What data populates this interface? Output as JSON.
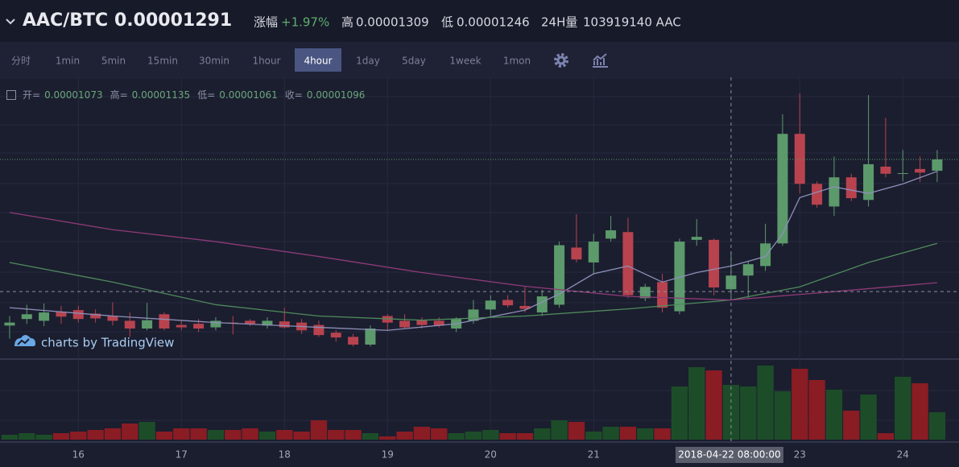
{
  "header": {
    "symbol": "AAC/BTC",
    "price": "0.00001291",
    "change_label": "涨幅",
    "change": "+1.97%",
    "high_label": "高",
    "high": "0.00001309",
    "low_label": "低",
    "low": "0.00001246",
    "volume_label": "24H量",
    "volume": "103919140 AAC"
  },
  "toolbar": {
    "intervals": [
      "分时",
      "1min",
      "5min",
      "15min",
      "30min",
      "1hour",
      "4hour",
      "1day",
      "5day",
      "1week",
      "1mon"
    ],
    "active": 6
  },
  "ohlc_legend": {
    "open_label": "开=",
    "open": "0.00001073",
    "high_label": "高=",
    "high": "0.00001135",
    "low_label": "低=",
    "low": "0.00001061",
    "close_label": "收=",
    "close": "0.00001096"
  },
  "watermark": "charts by TradingView",
  "chart_data": {
    "type": "candlestick",
    "xlim": [
      -0.56,
      55.27
    ],
    "ylim": [
      9.57e-06,
      1.429e-05
    ],
    "vlim": [
      0,
      36300000
    ],
    "xticks": [
      {
        "value": 4,
        "label": "16"
      },
      {
        "value": 10,
        "label": "17"
      },
      {
        "value": 16,
        "label": "18"
      },
      {
        "value": 22,
        "label": "19"
      },
      {
        "value": 28,
        "label": "20"
      },
      {
        "value": 34,
        "label": "21"
      },
      {
        "value": 46,
        "label": "23"
      },
      {
        "value": 52,
        "label": "24"
      }
    ],
    "up_color": "#5c9a6c",
    "down_color": "#b8434f",
    "vol_up_color": "#1d4d28",
    "vol_down_color": "#8a1c24",
    "open": [
      1.012e-05,
      1.023e-05,
      1.02e-05,
      1.035e-05,
      1.038e-05,
      1.032e-05,
      1.028e-05,
      1.02e-05,
      1.007e-05,
      1.031e-05,
      1.013e-05,
      1.015e-05,
      1.009e-05,
      1.017e-05,
      1.02e-05,
      1.012e-05,
      1.019e-05,
      1.017e-05,
      1.013e-05,
      1e-05,
      9.93e-06,
      9.8e-06,
      1.028e-05,
      1.02e-05,
      1.021e-05,
      1.02e-05,
      1.007e-05,
      1.02e-05,
      1.039e-05,
      1.055e-05,
      1.045e-05,
      1.034e-05,
      1.047e-05,
      1.143e-05,
      1.118e-05,
      1.158e-05,
      1.169e-05,
      1.058e-05,
      1.085e-05,
      1.036e-05,
      1.156e-05,
      1.156e-05,
      1.073e-05,
      1.096e-05,
      1.112e-05,
      1.15e-05,
      1.334e-05,
      1.25e-05,
      1.212e-05,
      1.261e-05,
      1.223e-05,
      1.279e-05,
      1.267e-05,
      1.275e-05,
      1.272e-05
    ],
    "high": [
      1.028e-05,
      1.047e-05,
      1.049e-05,
      1.045e-05,
      1.045e-05,
      1.039e-05,
      1.051e-05,
      1.034e-05,
      1.05e-05,
      1.034e-05,
      1.02e-05,
      1.023e-05,
      1.026e-05,
      1.028e-05,
      1.023e-05,
      1.026e-05,
      1.042e-05,
      1.023e-05,
      1.02e-05,
      1.004e-05,
      9.98e-06,
      1.012e-05,
      1.031e-05,
      1.031e-05,
      1.026e-05,
      1.026e-05,
      1.026e-05,
      1.055e-05,
      1.063e-05,
      1.063e-05,
      1.077e-05,
      1.072e-05,
      1.153e-05,
      1.199e-05,
      1.166e-05,
      1.196e-05,
      1.193e-05,
      1.082e-05,
      1.099e-05,
      1.158e-05,
      1.191e-05,
      1.158e-05,
      1.135e-05,
      1.12e-05,
      1.183e-05,
      1.367e-05,
      1.402e-05,
      1.254e-05,
      1.296e-05,
      1.267e-05,
      1.399e-05,
      1.361e-05,
      1.307e-05,
      1.296e-05,
      1.307e-05
    ],
    "low": [
      9.9e-06,
      1.015e-05,
      1.011e-05,
      1.015e-05,
      1.017e-05,
      1.017e-05,
      1.012e-05,
      9.93e-06,
      1.004e-05,
      1.004e-05,
      1.004e-05,
      1.001e-05,
      1.004e-05,
      9.97e-06,
      1.011e-05,
      1.007e-05,
      1.007e-05,
      9.98e-06,
      9.93e-06,
      9.85e-06,
      9.77e-06,
      9.77e-06,
      1.004e-05,
      1.007e-05,
      1.007e-05,
      1.009e-05,
      1.001e-05,
      1.015e-05,
      1.028e-05,
      1.042e-05,
      1.034e-05,
      1.028e-05,
      1.042e-05,
      1.118e-05,
      1.099e-05,
      1.153e-05,
      1.058e-05,
      1.053e-05,
      1.034e-05,
      1.031e-05,
      1.146e-05,
      1.063e-05,
      1.061e-05,
      1.058e-05,
      1.104e-05,
      1.146e-05,
      1.234e-05,
      1.21e-05,
      1.196e-05,
      1.221e-05,
      1.212e-05,
      1.261e-05,
      1.254e-05,
      1.253e-05,
      1.253e-05
    ],
    "close": [
      1.017e-05,
      1.031e-05,
      1.034e-05,
      1.027e-05,
      1.023e-05,
      1.024e-05,
      1.02e-05,
      1.007e-05,
      1.021e-05,
      1.007e-05,
      1.009e-05,
      1.007e-05,
      1.02e-05,
      1.016e-05,
      1.015e-05,
      1.02e-05,
      1.009e-05,
      1.004e-05,
      9.96e-06,
      9.92e-06,
      9.8e-06,
      1.007e-05,
      1.017e-05,
      1.009e-05,
      1.013e-05,
      1.012e-05,
      1.023e-05,
      1.039e-05,
      1.054e-05,
      1.046e-05,
      1.04e-05,
      1.061e-05,
      1.147e-05,
      1.123e-05,
      1.153e-05,
      1.172e-05,
      1.063e-05,
      1.077e-05,
      1.042e-05,
      1.153e-05,
      1.161e-05,
      1.076e-05,
      1.096e-05,
      1.115e-05,
      1.15e-05,
      1.334e-05,
      1.25e-05,
      1.215e-05,
      1.261e-05,
      1.226e-05,
      1.283e-05,
      1.267e-05,
      1.268e-05,
      1.269e-05,
      1.291e-05
    ],
    "volume": [
      2178000,
      2904000,
      2178000,
      2904000,
      3630000,
      4356000,
      5082000,
      7260000,
      7986000,
      3630000,
      5082000,
      5082000,
      4356000,
      4356000,
      5082000,
      3630000,
      4356000,
      3630000,
      8712000,
      4356000,
      4356000,
      2904000,
      1452000,
      3630000,
      5808000,
      5082000,
      2904000,
      3630000,
      4356000,
      2904000,
      2904000,
      5082000,
      8712000,
      7986000,
      3630000,
      5808000,
      5808000,
      5082000,
      5082000,
      23958000,
      32670000,
      31218000,
      24684000,
      23958000,
      33396000,
      21780000,
      31944000,
      26862000,
      22506000,
      13068000,
      20328000,
      2904000,
      28314000,
      25410000,
      12342000
    ],
    "series": [
      {
        "color": "#8e8fb8",
        "x": [
          0,
          6,
          12,
          18,
          22,
          26,
          30,
          32,
          34,
          36,
          38,
          40,
          42,
          44,
          45,
          46,
          48,
          50,
          52,
          54
        ],
        "values": [
          1.042e-05,
          1.028e-05,
          1.017e-05,
          1.009e-05,
          1.004e-05,
          1.015e-05,
          1.038e-05,
          1.065e-05,
          1.099e-05,
          1.112e-05,
          1.085e-05,
          1.101e-05,
          1.112e-05,
          1.128e-05,
          1.166e-05,
          1.227e-05,
          1.245e-05,
          1.234e-05,
          1.25e-05,
          1.271e-05
        ]
      },
      {
        "color": "#4f8a5c",
        "x": [
          0,
          6,
          12,
          18,
          24,
          30,
          36,
          42,
          46,
          50,
          54
        ],
        "values": [
          1.118e-05,
          1.085e-05,
          1.047e-05,
          1.028e-05,
          1.021e-05,
          1.028e-05,
          1.04e-05,
          1.055e-05,
          1.077e-05,
          1.118e-05,
          1.15e-05
        ]
      },
      {
        "color": "#8e3a78",
        "x": [
          0,
          6,
          12,
          18,
          24,
          30,
          36,
          42,
          48,
          54
        ],
        "values": [
          1.202e-05,
          1.173e-05,
          1.153e-05,
          1.128e-05,
          1.101e-05,
          1.078e-05,
          1.061e-05,
          1.055e-05,
          1.069e-05,
          1.084e-05
        ]
      }
    ],
    "last_price": 1.291e-05,
    "crosshair": {
      "x": 42,
      "y": 1.069e-05,
      "label": "2018-04-22 08:00:00"
    }
  }
}
